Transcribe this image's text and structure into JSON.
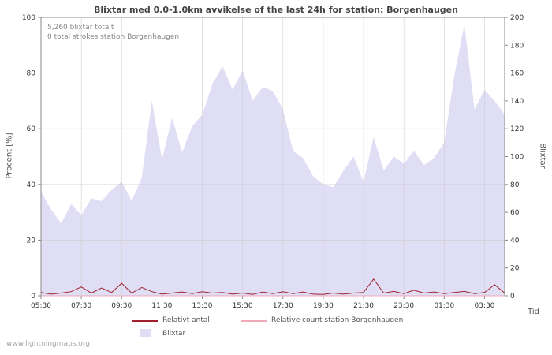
{
  "title": "Blixtar med 0.0-1.0km avvikelse of the last 24h for station: Borgenhaugen",
  "annotations": {
    "total": "5,260 blixtar totalt",
    "station_total": "0 total strokes station Borgenhaugen"
  },
  "watermark": "www.lightningmaps.org",
  "legend": {
    "relative_label": "Relativt antal",
    "relative_station_label": "Relative count station Borgenhaugen",
    "area_label": "Blixtar"
  },
  "colors": {
    "area": "#e0def4",
    "relative_line": "#a02030",
    "station_line": "#f0a8b8",
    "grid": "#cccccc",
    "frame": "#888888",
    "tick_text": "#333333"
  },
  "chart_data": {
    "type": "area",
    "title": "Blixtar med 0.0-1.0km avvikelse of the last 24h for station: Borgenhaugen",
    "x": [
      "05:30",
      "06:00",
      "06:30",
      "07:00",
      "07:30",
      "08:00",
      "08:30",
      "09:00",
      "09:30",
      "10:00",
      "10:30",
      "11:00",
      "11:30",
      "12:00",
      "12:30",
      "13:00",
      "13:30",
      "14:00",
      "14:30",
      "15:00",
      "15:30",
      "16:00",
      "16:30",
      "17:00",
      "17:30",
      "18:00",
      "18:30",
      "19:00",
      "19:30",
      "20:00",
      "20:30",
      "21:00",
      "21:30",
      "22:00",
      "22:30",
      "23:00",
      "23:30",
      "00:00",
      "00:30",
      "01:00",
      "01:30",
      "02:00",
      "02:30",
      "03:00",
      "03:30",
      "04:00",
      "04:30"
    ],
    "series": [
      {
        "name": "Blixtar",
        "type": "area",
        "axis": "right",
        "color": "#e0def4",
        "values": [
          75,
          62,
          52,
          66,
          58,
          70,
          68,
          76,
          82,
          68,
          85,
          140,
          98,
          128,
          103,
          122,
          130,
          152,
          165,
          148,
          162,
          140,
          150,
          147,
          134,
          104,
          99,
          86,
          80,
          78,
          90,
          100,
          82,
          114,
          90,
          100,
          95,
          104,
          94,
          99,
          110,
          158,
          195,
          134,
          148,
          140,
          130
        ]
      },
      {
        "name": "Relativt antal",
        "type": "line",
        "axis": "left",
        "color": "#a02030",
        "values": [
          1.2,
          0.6,
          1.0,
          1.5,
          3.2,
          1.0,
          2.8,
          1.2,
          4.5,
          1.0,
          3.0,
          1.5,
          0.6,
          1.0,
          1.4,
          0.8,
          1.5,
          1.0,
          1.2,
          0.6,
          1.0,
          0.5,
          1.4,
          0.8,
          1.5,
          0.8,
          1.4,
          0.6,
          0.5,
          1.0,
          0.6,
          1.0,
          1.2,
          6.0,
          1.0,
          1.6,
          0.8,
          2.0,
          1.0,
          1.4,
          0.8,
          1.2,
          1.6,
          0.8,
          1.2,
          4.0,
          1.0
        ]
      },
      {
        "name": "Relative count station Borgenhaugen",
        "type": "line",
        "axis": "left",
        "color": "#f0a8b8",
        "values": [
          0,
          0,
          0,
          0,
          0,
          0,
          0,
          0,
          0,
          0,
          0,
          0,
          0,
          0,
          0,
          0,
          0,
          0,
          0,
          0,
          0,
          0,
          0,
          0,
          0,
          0,
          0,
          0,
          0,
          0,
          0,
          0,
          0,
          0,
          0,
          0,
          0,
          0,
          0,
          0,
          0,
          0,
          0,
          0,
          0,
          0,
          0
        ]
      }
    ],
    "left_axis": {
      "label": "Procent  [%]",
      "range": [
        0,
        100
      ],
      "ticks": [
        0,
        20,
        40,
        60,
        80,
        100
      ]
    },
    "right_axis": {
      "label": "Blixtar",
      "range": [
        0,
        200
      ],
      "ticks": [
        0,
        20,
        40,
        60,
        80,
        100,
        120,
        140,
        160,
        180,
        200
      ]
    },
    "x_axis": {
      "label": "Tid",
      "tick_every": 4,
      "tick_labels": [
        "05:30",
        "07:30",
        "09:30",
        "11:30",
        "13:30",
        "15:30",
        "17:30",
        "19:30",
        "21:30",
        "23:30",
        "01:30",
        "03:30"
      ]
    },
    "grid": true,
    "legend_position": "bottom"
  }
}
